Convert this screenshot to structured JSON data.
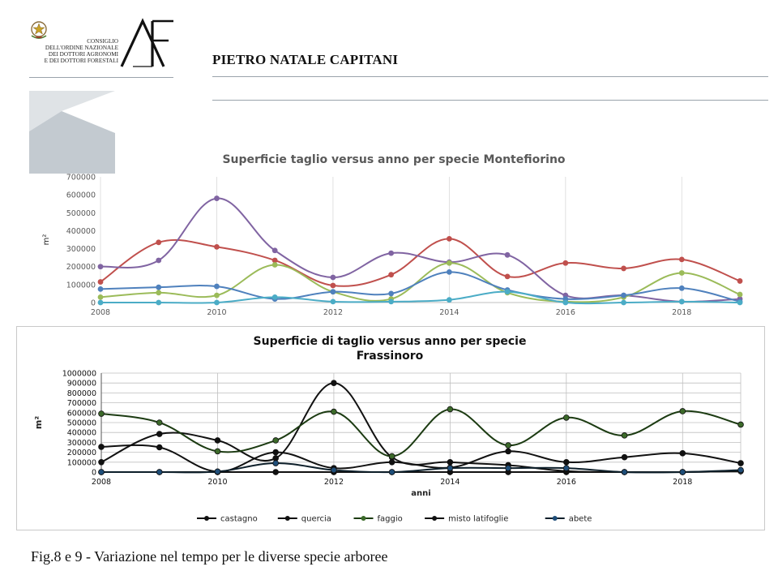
{
  "header": {
    "council_lines": [
      "CONSIGLIO",
      "DELL'ORDINE NAZIONALE",
      "DEI DOTTORI AGRONOMI",
      "E DEI DOTTORI FORESTALI"
    ],
    "logo_icon": "af-monogram-logo",
    "emblem_icon": "italian-republic-emblem",
    "author": "PIETRO NATALE CAPITANI"
  },
  "caption": "Fig.8 e 9 - Variazione nel tempo per le diverse specie arboree",
  "chart_data": [
    {
      "type": "line",
      "title": "Superficie taglio versus anno per specie Montefiorino",
      "xlabel": "",
      "ylabel": "m²",
      "x": [
        2008,
        2009,
        2010,
        2011,
        2012,
        2013,
        2014,
        2015,
        2016,
        2017,
        2018,
        2019
      ],
      "xlim": [
        2008,
        2019
      ],
      "xticks": [
        "2008",
        "2010",
        "2012",
        "2014",
        "2016",
        "2018"
      ],
      "ylim": [
        0,
        700000
      ],
      "yticks": [
        "0",
        "100000",
        "200000",
        "300000",
        "400000",
        "500000",
        "600000",
        "700000"
      ],
      "grid": "vertical",
      "legend": "none",
      "series": [
        {
          "color": "#c0504d",
          "values": [
            115000,
            335000,
            310000,
            235000,
            95000,
            155000,
            355000,
            145000,
            220000,
            190000,
            240000,
            120000
          ]
        },
        {
          "color": "#8064a2",
          "values": [
            200000,
            235000,
            580000,
            290000,
            140000,
            275000,
            225000,
            265000,
            40000,
            40000,
            5000,
            20000
          ]
        },
        {
          "color": "#9bbb59",
          "values": [
            30000,
            55000,
            40000,
            210000,
            60000,
            20000,
            220000,
            55000,
            5000,
            30000,
            165000,
            45000
          ]
        },
        {
          "color": "#4f81bd",
          "values": [
            75000,
            85000,
            90000,
            20000,
            60000,
            50000,
            170000,
            70000,
            20000,
            40000,
            80000,
            5000
          ]
        },
        {
          "color": "#4bacc6",
          "values": [
            0,
            0,
            0,
            30000,
            5000,
            5000,
            15000,
            60000,
            0,
            0,
            5000,
            0
          ]
        }
      ]
    },
    {
      "type": "line",
      "title": "Superficie di taglio versus anno per specie",
      "subtitle": "Frassinoro",
      "xlabel": "anni",
      "ylabel": "m²",
      "x": [
        2008,
        2009,
        2010,
        2011,
        2012,
        2013,
        2014,
        2015,
        2016,
        2017,
        2018,
        2019
      ],
      "xlim": [
        2008,
        2019
      ],
      "xticks": [
        "2008",
        "2010",
        "2012",
        "2014",
        "2016",
        "2018"
      ],
      "ylim": [
        0,
        1000000
      ],
      "yticks": [
        "0",
        "100000",
        "200000",
        "300000",
        "400000",
        "500000",
        "600000",
        "700000",
        "800000",
        "900000",
        "1000000"
      ],
      "grid": "both",
      "legend": "bottom",
      "series": [
        {
          "name": "castagno",
          "color": "#111111",
          "marker": "#111111",
          "values": [
            0,
            0,
            0,
            0,
            0,
            0,
            0,
            0,
            0,
            0,
            0,
            10000
          ]
        },
        {
          "name": "quercia",
          "color": "#111111",
          "marker": "#111111",
          "values": [
            100000,
            385000,
            320000,
            140000,
            900000,
            150000,
            100000,
            70000,
            10000,
            0,
            0,
            10000
          ]
        },
        {
          "name": "faggio",
          "color": "#1c3b12",
          "marker": "#3c6a2a",
          "values": [
            590000,
            500000,
            210000,
            320000,
            610000,
            160000,
            635000,
            270000,
            550000,
            370000,
            615000,
            480000
          ]
        },
        {
          "name": "misto latifoglie",
          "color": "#111111",
          "marker": "#111111",
          "values": [
            255000,
            250000,
            5000,
            200000,
            40000,
            100000,
            45000,
            210000,
            100000,
            150000,
            190000,
            90000
          ]
        },
        {
          "name": "abete",
          "color": "#0d1f2a",
          "marker": "#1f4e79",
          "values": [
            0,
            0,
            5000,
            90000,
            20000,
            0,
            40000,
            40000,
            40000,
            0,
            0,
            20000
          ]
        }
      ]
    }
  ]
}
